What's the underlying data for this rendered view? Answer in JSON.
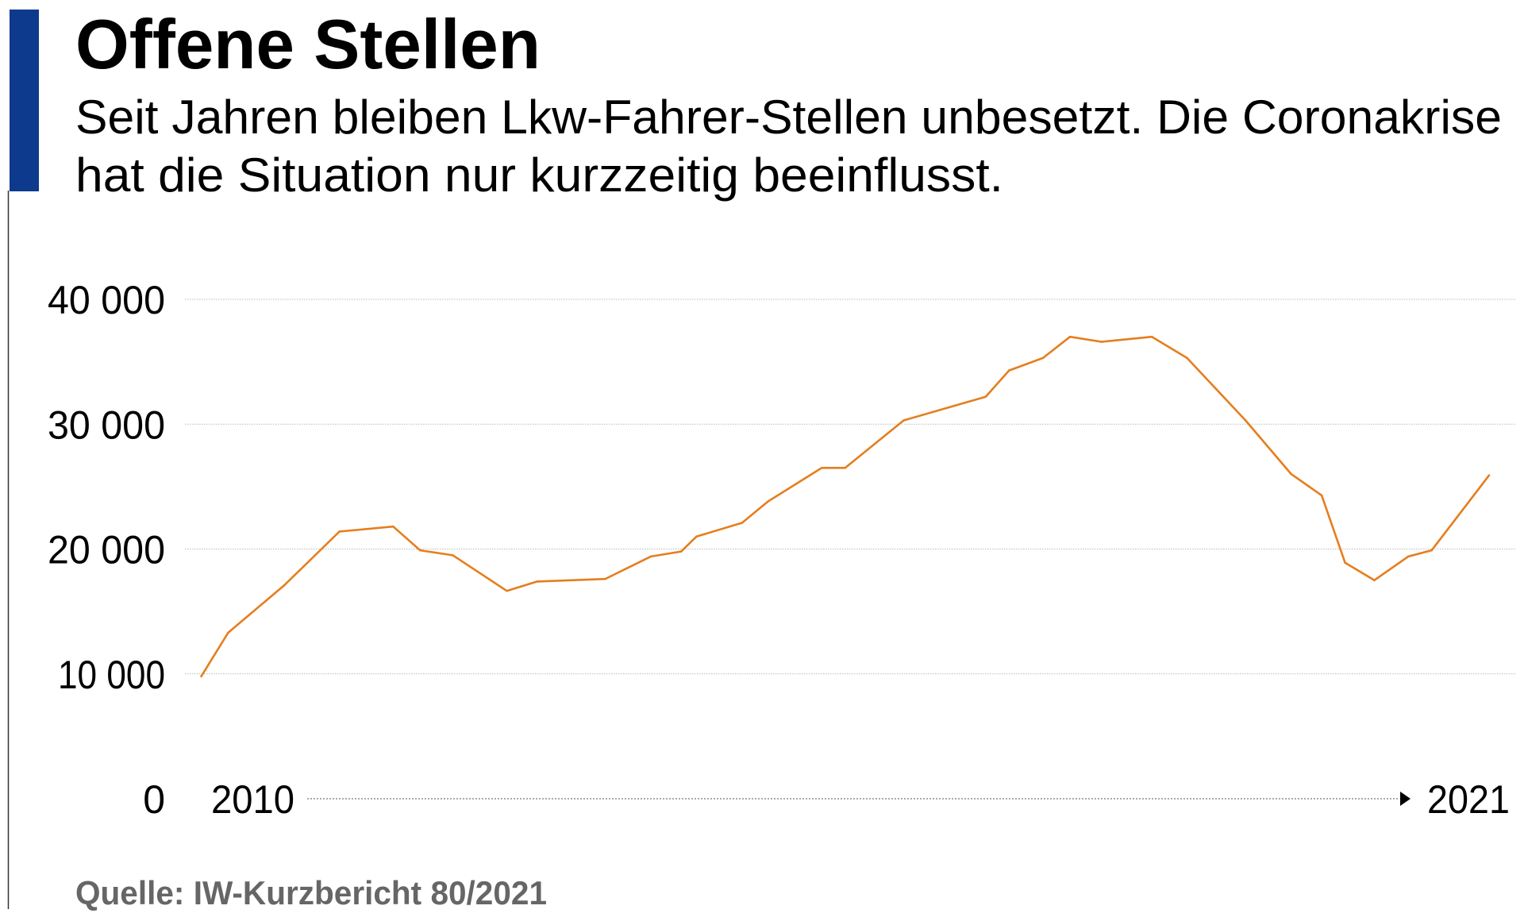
{
  "header": {
    "title": "Offene Stellen",
    "subtitle_line1": "Seit Jahren bleiben Lkw-Fahrer-Stellen unbesetzt. Die Coronakrise",
    "subtitle_line2": "hat die Situation nur kurzzeitig beeinflusst."
  },
  "footer": {
    "source": "Quelle: IW-Kurzbericht 80/2021"
  },
  "colors": {
    "accent_bar": "#0d3a8c",
    "line": "#e57e1e",
    "source_text": "#666666"
  },
  "chart_data": {
    "type": "line",
    "title": "Offene Stellen",
    "ylim": [
      0,
      40000
    ],
    "yticks": [
      {
        "value": 0,
        "label": "0"
      },
      {
        "value": 10000,
        "label": "10 000"
      },
      {
        "value": 20000,
        "label": "20 000"
      },
      {
        "value": 30000,
        "label": "30 000"
      },
      {
        "value": 40000,
        "label": "40 000"
      }
    ],
    "xlim": [
      2010,
      2021
    ],
    "xtick_labels": {
      "start": "2010",
      "end": "2021"
    },
    "grid": true,
    "series": [
      {
        "x": [
          2010.0,
          2010.23,
          2010.71,
          2011.18,
          2011.64,
          2011.87,
          2012.15,
          2012.61,
          2012.87,
          2013.45,
          2013.84,
          2014.1,
          2014.23,
          2014.62,
          2014.84,
          2015.3,
          2015.5,
          2016.0,
          2016.7,
          2016.9,
          2017.19,
          2017.42,
          2017.69,
          2018.12,
          2018.42,
          2018.92,
          2019.31,
          2019.57,
          2019.77,
          2020.02,
          2020.31,
          2020.51,
          2021.0
        ],
        "values": [
          9800,
          13300,
          17100,
          21400,
          21800,
          19900,
          19500,
          16650,
          17400,
          17600,
          19400,
          19800,
          21000,
          22100,
          23800,
          26500,
          26500,
          30300,
          32200,
          34300,
          35300,
          37000,
          36600,
          37000,
          35300,
          30300,
          26000,
          24300,
          18900,
          17500,
          19400,
          19900,
          25900
        ]
      }
    ]
  }
}
